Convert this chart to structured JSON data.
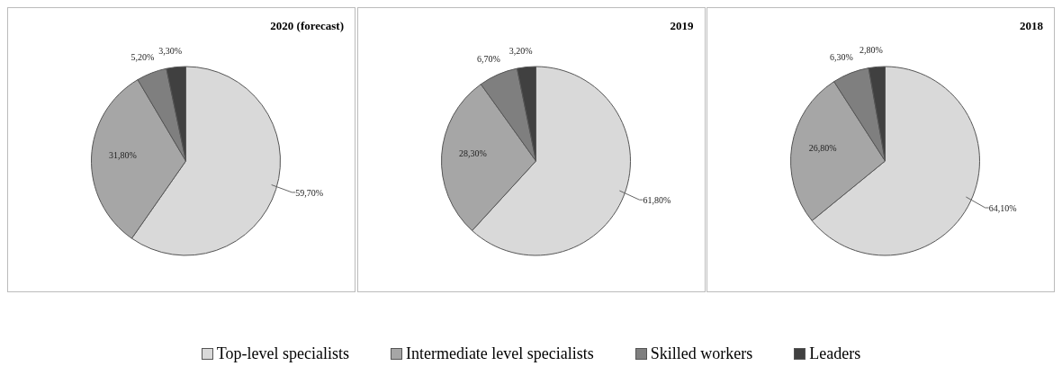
{
  "chart_data": [
    {
      "type": "pie",
      "title": "2020 (forecast)",
      "categories": [
        "Top-level specialists",
        "Intermediate level specialists",
        "Skilled workers",
        "Leaders"
      ],
      "values": [
        59.7,
        31.8,
        5.2,
        3.3
      ],
      "value_labels": [
        "59,70%",
        "31,80%",
        "5,20%",
        "3,30%"
      ],
      "colors": [
        "#d9d9d9",
        "#a6a6a6",
        "#7f7f7f",
        "#404040"
      ],
      "legend": "bottom"
    },
    {
      "type": "pie",
      "title": "2019",
      "categories": [
        null,
        null,
        null,
        null
      ],
      "values": [
        61.8,
        28.3,
        6.7,
        3.2
      ],
      "value_labels": [
        "61,80%",
        "28,30%",
        "6,70%",
        "3,20%"
      ],
      "colors": [
        "#d9d9d9",
        "#a6a6a6",
        "#7f7f7f",
        "#404040"
      ]
    },
    {
      "type": "pie",
      "title": "2018",
      "categories": [
        null,
        null,
        null,
        null
      ],
      "values": [
        64.1,
        26.8,
        6.3,
        2.8
      ],
      "value_labels": [
        "64,10%",
        "26,80%",
        "6,30%",
        "2,80%"
      ],
      "colors": [
        "#d9d9d9",
        "#a6a6a6",
        "#7f7f7f",
        "#404040"
      ]
    }
  ]
}
